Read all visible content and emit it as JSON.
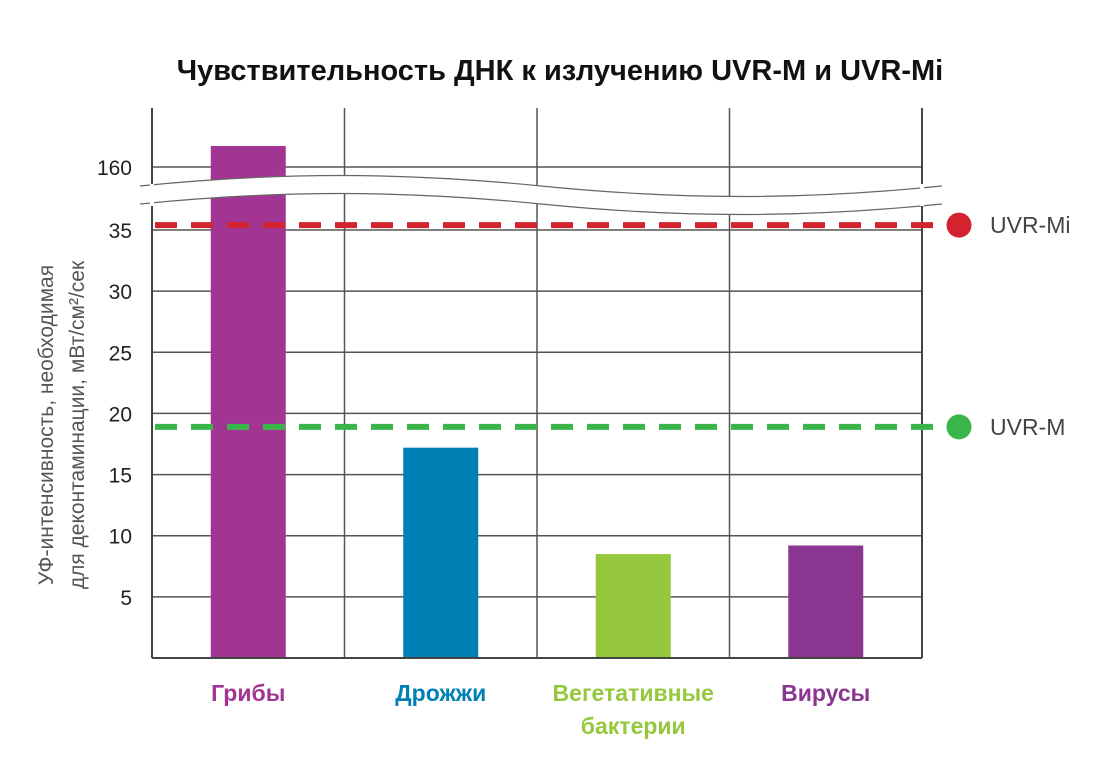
{
  "chart_data": {
    "type": "bar",
    "title": "Чувствительность ДНК к излучению UVR-M и UVR-Mi",
    "ylabel_lines": [
      "УФ-интенсивность, необходимая",
      "для деконтаминации, мВт/см²/сек"
    ],
    "y_ticks": [
      5,
      10,
      15,
      20,
      25,
      30,
      35
    ],
    "y_break_tick": 160,
    "ylim": [
      0,
      35
    ],
    "categories": [
      {
        "label_lines": [
          "Грибы"
        ],
        "value": 162,
        "color": "#a23593",
        "label_color": "#a23593"
      },
      {
        "label_lines": [
          "Дрожжи"
        ],
        "value": 17.2,
        "color": "#0080b4",
        "label_color": "#0080b4"
      },
      {
        "label_lines": [
          "Вегетативные",
          "бактерии"
        ],
        "value": 8.5,
        "color": "#95c83d",
        "label_color": "#95c83d"
      },
      {
        "label_lines": [
          "Вирусы"
        ],
        "value": 9.2,
        "color": "#8a3690",
        "label_color": "#8a3690"
      }
    ],
    "reference_lines": [
      {
        "name": "UVR-Mi",
        "value": 35.4,
        "color": "#d3232f"
      },
      {
        "name": "UVR-M",
        "value": 18.9,
        "color": "#3ab54a"
      }
    ],
    "grid": true,
    "axis_break": true
  }
}
